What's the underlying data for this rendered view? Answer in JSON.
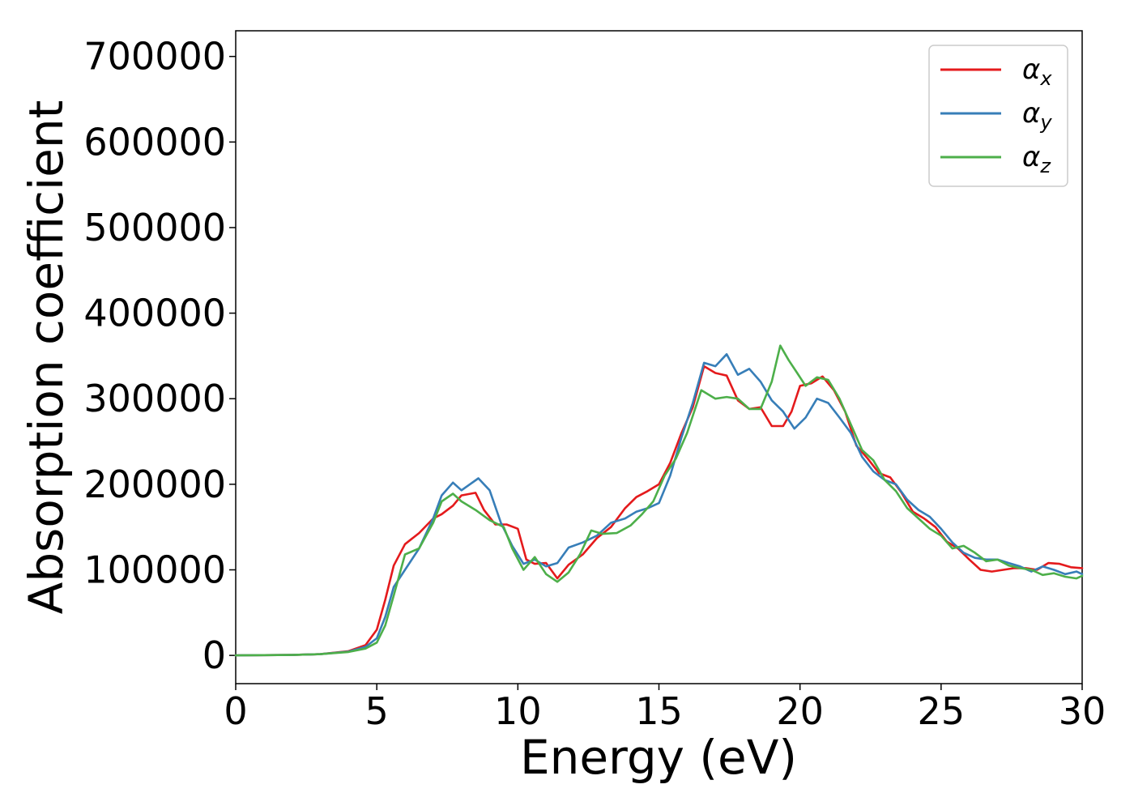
{
  "chart_data": {
    "type": "line",
    "title": "",
    "xlabel": "Energy (eV)",
    "ylabel": "Absorption coefficient",
    "xlim": [
      0,
      30
    ],
    "ylim": [
      -33000,
      730000
    ],
    "x_ticks": [
      "0",
      "5",
      "10",
      "15",
      "20",
      "25",
      "30"
    ],
    "y_ticks": [
      "0",
      "100000",
      "200000",
      "300000",
      "400000",
      "500000",
      "600000",
      "700000"
    ],
    "grid": false,
    "legend_position": "top-right",
    "series": [
      {
        "name": "αx",
        "symbol": "α",
        "subscript": "x",
        "color": "#e41a1c",
        "x": [
          0,
          2,
          3,
          4,
          4.6,
          5.0,
          5.3,
          5.6,
          6.0,
          6.5,
          7.0,
          7.3,
          7.7,
          8.0,
          8.5,
          8.8,
          9.2,
          9.6,
          10.0,
          10.3,
          10.6,
          11.0,
          11.4,
          11.8,
          12.3,
          12.8,
          13.3,
          13.8,
          14.2,
          14.6,
          15.0,
          15.4,
          15.8,
          16.2,
          16.6,
          17.0,
          17.4,
          17.8,
          18.2,
          18.6,
          19.0,
          19.4,
          19.7,
          20.0,
          20.4,
          20.8,
          21.2,
          21.6,
          22.0,
          22.4,
          22.8,
          23.2,
          23.6,
          24.0,
          24.4,
          24.8,
          25.2,
          25.6,
          26.0,
          26.4,
          26.8,
          27.2,
          27.6,
          28.0,
          28.4,
          28.8,
          29.2,
          29.6,
          30.0
        ],
        "y": [
          0,
          500,
          1500,
          5000,
          12000,
          30000,
          65000,
          105000,
          130000,
          143000,
          160000,
          165000,
          175000,
          187000,
          190000,
          170000,
          153000,
          153000,
          148000,
          112000,
          107000,
          108000,
          90000,
          106000,
          118000,
          137000,
          150000,
          172000,
          185000,
          192000,
          200000,
          225000,
          260000,
          290000,
          338000,
          330000,
          327000,
          298000,
          288000,
          290000,
          268000,
          268000,
          285000,
          315000,
          318000,
          326000,
          310000,
          285000,
          245000,
          230000,
          213000,
          208000,
          190000,
          168000,
          160000,
          150000,
          133000,
          125000,
          112000,
          100000,
          98000,
          100000,
          102000,
          102000,
          100000,
          108000,
          107000,
          103000,
          102000
        ]
      },
      {
        "name": "αy",
        "symbol": "α",
        "subscript": "y",
        "color": "#377eb8",
        "x": [
          0,
          2,
          3,
          4,
          4.6,
          5.0,
          5.3,
          5.6,
          6.0,
          6.5,
          7.0,
          7.3,
          7.7,
          8.0,
          8.3,
          8.6,
          9.0,
          9.4,
          9.8,
          10.2,
          10.6,
          11.0,
          11.4,
          11.8,
          12.3,
          12.8,
          13.3,
          13.8,
          14.2,
          14.6,
          15.0,
          15.4,
          15.8,
          16.2,
          16.6,
          17.0,
          17.4,
          17.8,
          18.2,
          18.6,
          19.0,
          19.4,
          19.8,
          20.2,
          20.6,
          21.0,
          21.4,
          21.8,
          22.2,
          22.6,
          23.0,
          23.4,
          23.8,
          24.2,
          24.6,
          25.0,
          25.4,
          25.8,
          26.2,
          26.6,
          27.0,
          27.4,
          27.8,
          28.2,
          28.6,
          29.0,
          29.4,
          29.8,
          30.0
        ],
        "y": [
          0,
          500,
          1500,
          4500,
          10000,
          20000,
          45000,
          80000,
          100000,
          125000,
          160000,
          187000,
          202000,
          193000,
          200000,
          207000,
          193000,
          155000,
          128000,
          107000,
          112000,
          104000,
          108000,
          126000,
          132000,
          140000,
          155000,
          160000,
          168000,
          172000,
          178000,
          210000,
          255000,
          295000,
          342000,
          338000,
          352000,
          328000,
          335000,
          320000,
          298000,
          285000,
          265000,
          278000,
          300000,
          295000,
          278000,
          260000,
          232000,
          215000,
          205000,
          200000,
          182000,
          170000,
          162000,
          148000,
          132000,
          120000,
          114000,
          112000,
          112000,
          108000,
          104000,
          98000,
          104000,
          100000,
          95000,
          98000,
          95000
        ]
      },
      {
        "name": "αz",
        "symbol": "α",
        "subscript": "z",
        "color": "#4daf4a",
        "x": [
          0,
          2,
          3,
          4,
          4.6,
          5.0,
          5.3,
          5.6,
          6.0,
          6.5,
          7.0,
          7.3,
          7.7,
          8.0,
          8.5,
          9.0,
          9.5,
          9.8,
          10.2,
          10.6,
          11.0,
          11.4,
          11.8,
          12.2,
          12.6,
          13.0,
          13.5,
          14.0,
          14.4,
          14.8,
          15.2,
          15.6,
          16.0,
          16.5,
          17.0,
          17.4,
          17.8,
          18.2,
          18.6,
          19.0,
          19.3,
          19.6,
          19.9,
          20.2,
          20.6,
          21.0,
          21.4,
          21.8,
          22.2,
          22.6,
          23.0,
          23.4,
          23.8,
          24.2,
          24.6,
          25.0,
          25.4,
          25.8,
          26.2,
          26.6,
          27.0,
          27.4,
          27.8,
          28.2,
          28.6,
          29.0,
          29.4,
          29.8,
          30.0
        ],
        "y": [
          0,
          500,
          1500,
          4000,
          8000,
          15000,
          35000,
          70000,
          118000,
          125000,
          155000,
          180000,
          189000,
          180000,
          170000,
          158000,
          150000,
          125000,
          100000,
          115000,
          95000,
          86000,
          97000,
          118000,
          146000,
          142000,
          143000,
          152000,
          165000,
          180000,
          210000,
          230000,
          260000,
          310000,
          300000,
          302000,
          300000,
          288000,
          288000,
          320000,
          362000,
          345000,
          330000,
          315000,
          325000,
          322000,
          300000,
          270000,
          240000,
          228000,
          205000,
          192000,
          172000,
          160000,
          148000,
          140000,
          125000,
          128000,
          120000,
          110000,
          112000,
          105000,
          102000,
          100000,
          94000,
          96000,
          92000,
          90000,
          93000
        ]
      }
    ]
  }
}
